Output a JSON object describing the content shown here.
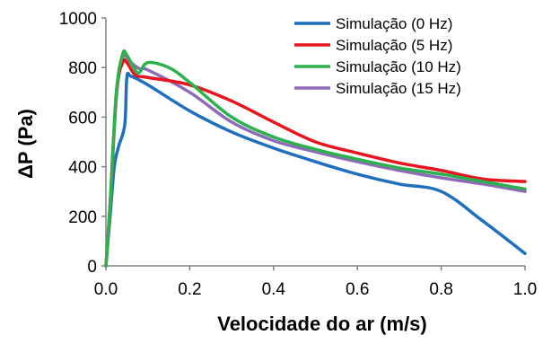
{
  "chart_data": {
    "type": "line",
    "title": "",
    "xlabel": "Velocidade do ar (m/s)",
    "ylabel": "ΔP  (Pa)",
    "xlim": [
      0,
      1.0
    ],
    "ylim": [
      0,
      1000
    ],
    "x_ticks": [
      "0.0",
      "0.2",
      "0.4",
      "0.6",
      "0.8",
      "1.0"
    ],
    "y_ticks": [
      "0",
      "200",
      "400",
      "600",
      "800",
      "1000"
    ],
    "x_tick_values": [
      0,
      0.2,
      0.4,
      0.6,
      0.8,
      1.0
    ],
    "y_tick_values": [
      0,
      200,
      400,
      600,
      800,
      1000
    ],
    "grid": false,
    "legend_position": "top-right",
    "series": [
      {
        "name": "Simulação (0 Hz)",
        "color": "#1f6fbf",
        "x": [
          0,
          0.01,
          0.02,
          0.03,
          0.045,
          0.05,
          0.06,
          0.1,
          0.2,
          0.3,
          0.4,
          0.5,
          0.6,
          0.7,
          0.8,
          0.9,
          1.0
        ],
        "y": [
          0,
          200,
          400,
          480,
          570,
          760,
          765,
          730,
          625,
          540,
          475,
          420,
          370,
          330,
          300,
          180,
          50
        ]
      },
      {
        "name": "Simulação (5 Hz)",
        "color": "#e8141e",
        "x": [
          0,
          0.01,
          0.025,
          0.04,
          0.05,
          0.07,
          0.1,
          0.2,
          0.3,
          0.4,
          0.5,
          0.6,
          0.7,
          0.8,
          0.9,
          1.0
        ],
        "y": [
          0,
          250,
          700,
          820,
          820,
          770,
          760,
          730,
          665,
          580,
          500,
          455,
          415,
          385,
          350,
          340
        ]
      },
      {
        "name": "Simulação (10 Hz)",
        "color": "#2bb24c",
        "x": [
          0,
          0.01,
          0.025,
          0.04,
          0.05,
          0.07,
          0.08,
          0.1,
          0.15,
          0.2,
          0.3,
          0.4,
          0.5,
          0.6,
          0.7,
          0.8,
          0.9,
          1.0
        ],
        "y": [
          0,
          250,
          700,
          855,
          850,
          790,
          780,
          820,
          800,
          740,
          600,
          520,
          470,
          430,
          395,
          370,
          340,
          310
        ]
      },
      {
        "name": "Simulação (15 Hz)",
        "color": "#8e6bb8",
        "x": [
          0,
          0.01,
          0.025,
          0.04,
          0.05,
          0.06,
          0.08,
          0.1,
          0.2,
          0.3,
          0.4,
          0.5,
          0.6,
          0.7,
          0.8,
          0.9,
          1.0
        ],
        "y": [
          0,
          240,
          680,
          840,
          840,
          820,
          795,
          790,
          700,
          580,
          505,
          460,
          420,
          385,
          355,
          330,
          300
        ]
      }
    ]
  }
}
